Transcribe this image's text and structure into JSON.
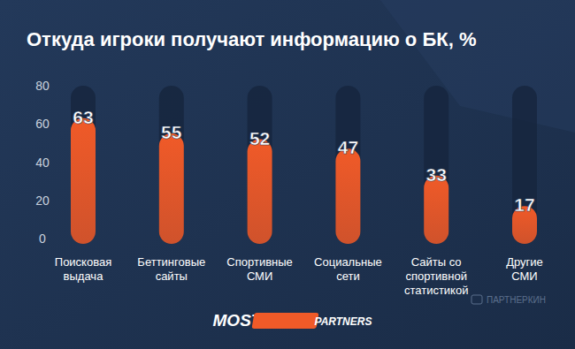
{
  "chart_data": {
    "type": "bar",
    "title": "Откуда игроки получают информацию о БК, %",
    "categories": [
      "Поисковая\nвыдача",
      "Беттинговые\nсайты",
      "Спортивные\nСМИ",
      "Социальные\nсети",
      "Сайты со\nспортивной\nстатистикой",
      "Другие\nСМИ"
    ],
    "values": [
      63,
      55,
      52,
      47,
      33,
      17
    ],
    "color": "#f05a28",
    "ylim": [
      0,
      80
    ],
    "yticks": [
      0,
      20,
      40,
      60,
      80
    ],
    "grid": false,
    "data_labels": true,
    "annotations": [
      "MOSTBET",
      "PARTNERS",
      "ПАРТНЕРКИН"
    ]
  }
}
